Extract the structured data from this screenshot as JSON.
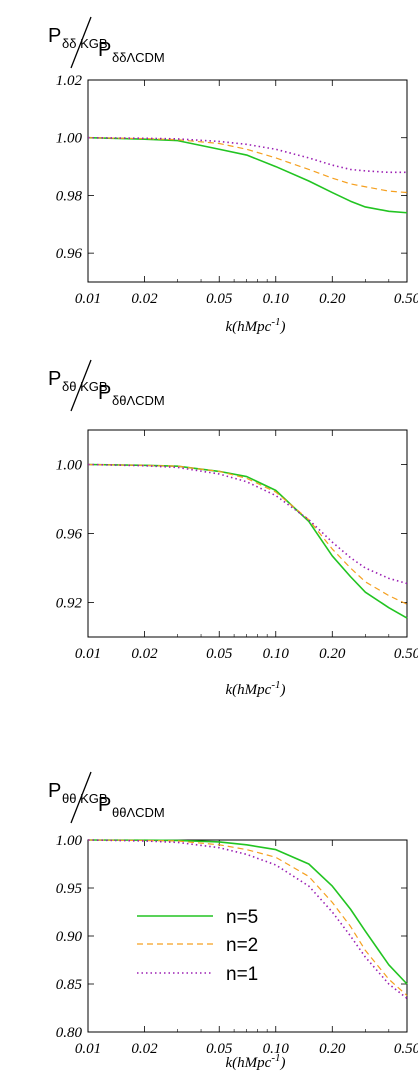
{
  "chart_data": [
    {
      "type": "line",
      "ylabel": {
        "num_main": "P",
        "num_sub": "δδ KGB",
        "den_main": "P",
        "den_sub": "δδΛCDM"
      },
      "xlabel": {
        "main": "k(hMpc",
        "sup": "-1",
        "close": ")"
      },
      "xscale": "log",
      "xlim": [
        0.01,
        0.5
      ],
      "ylim": [
        0.95,
        1.02
      ],
      "xticks": [
        0.01,
        0.02,
        0.05,
        0.1,
        0.2,
        0.5
      ],
      "xtick_labels": [
        "0.01",
        "0.02",
        "0.05",
        "0.10",
        "0.20",
        "0.50"
      ],
      "yticks": [
        0.96,
        0.98,
        1.0,
        1.02
      ],
      "ytick_labels": [
        "0.96",
        "0.98",
        "1.00",
        "1.02"
      ],
      "x": [
        0.01,
        0.02,
        0.03,
        0.05,
        0.07,
        0.1,
        0.15,
        0.2,
        0.25,
        0.3,
        0.4,
        0.5
      ],
      "series": [
        {
          "name": "n=5",
          "color": "#22c422",
          "dash": "solid",
          "width": 1.6,
          "values": [
            1.0,
            0.9995,
            0.999,
            0.996,
            0.994,
            0.99,
            0.985,
            0.981,
            0.978,
            0.976,
            0.9745,
            0.974
          ]
        },
        {
          "name": "n=2",
          "color": "#f5a020",
          "dash": "dashed",
          "width": 1.2,
          "values": [
            1.0,
            0.9997,
            0.9993,
            0.998,
            0.996,
            0.993,
            0.989,
            0.986,
            0.984,
            0.983,
            0.9815,
            0.981
          ]
        },
        {
          "name": "n=1",
          "color": "#9b1fb3",
          "dash": "dotted",
          "width": 1.6,
          "values": [
            1.0,
            0.9998,
            0.9996,
            0.9987,
            0.9977,
            0.996,
            0.993,
            0.9905,
            0.989,
            0.9885,
            0.988,
            0.988
          ]
        }
      ]
    },
    {
      "type": "line",
      "ylabel": {
        "num_main": "P",
        "num_sub": "δθ KGB",
        "den_main": "P",
        "den_sub": "δθΛCDM"
      },
      "xlabel": {
        "main": "k(hMpc",
        "sup": "-1",
        "close": ")"
      },
      "xscale": "log",
      "xlim": [
        0.01,
        0.5
      ],
      "ylim": [
        0.9,
        1.02
      ],
      "xticks": [
        0.01,
        0.02,
        0.05,
        0.1,
        0.2,
        0.5
      ],
      "xtick_labels": [
        "0.01",
        "0.02",
        "0.05",
        "0.10",
        "0.20",
        "0.50"
      ],
      "yticks": [
        0.92,
        0.96,
        1.0
      ],
      "ytick_labels": [
        "0.92",
        "0.96",
        "1.00"
      ],
      "x": [
        0.01,
        0.02,
        0.03,
        0.05,
        0.07,
        0.1,
        0.15,
        0.2,
        0.25,
        0.3,
        0.4,
        0.5
      ],
      "series": [
        {
          "name": "n=5",
          "color": "#22c422",
          "dash": "solid",
          "width": 1.6,
          "values": [
            1.0,
            0.9995,
            0.999,
            0.996,
            0.993,
            0.985,
            0.967,
            0.947,
            0.935,
            0.926,
            0.917,
            0.911
          ]
        },
        {
          "name": "n=2",
          "color": "#f5a020",
          "dash": "dashed",
          "width": 1.2,
          "values": [
            1.0,
            0.9995,
            0.999,
            0.996,
            0.992,
            0.984,
            0.968,
            0.951,
            0.94,
            0.932,
            0.924,
            0.919
          ]
        },
        {
          "name": "n=1",
          "color": "#9b1fb3",
          "dash": "dotted",
          "width": 1.6,
          "values": [
            1.0,
            0.9993,
            0.9983,
            0.9945,
            0.99,
            0.982,
            0.968,
            0.955,
            0.946,
            0.94,
            0.934,
            0.931
          ]
        }
      ]
    },
    {
      "type": "line",
      "ylabel": {
        "num_main": "P",
        "num_sub": "θθ KGB",
        "den_main": "P",
        "den_sub": "θθΛCDM"
      },
      "xlabel": {
        "main": "k(hMpc",
        "sup": "-1",
        "close": ")"
      },
      "xscale": "log",
      "xlim": [
        0.01,
        0.5
      ],
      "ylim": [
        0.8,
        1.0
      ],
      "xticks": [
        0.01,
        0.02,
        0.05,
        0.1,
        0.2,
        0.5
      ],
      "xtick_labels": [
        "0.01",
        "0.02",
        "0.05",
        "0.10",
        "0.20",
        "0.50"
      ],
      "yticks": [
        0.8,
        0.85,
        0.9,
        0.95,
        1.0
      ],
      "ytick_labels": [
        "0.80",
        "0.85",
        "0.90",
        "0.95",
        "1.00"
      ],
      "x": [
        0.01,
        0.02,
        0.03,
        0.05,
        0.07,
        0.1,
        0.15,
        0.2,
        0.25,
        0.3,
        0.4,
        0.5
      ],
      "series": [
        {
          "name": "n=5",
          "color": "#22c422",
          "dash": "solid",
          "width": 1.6,
          "values": [
            1.0,
            0.9998,
            0.9995,
            0.998,
            0.995,
            0.99,
            0.975,
            0.952,
            0.928,
            0.905,
            0.87,
            0.85
          ]
        },
        {
          "name": "n=2",
          "color": "#f5a020",
          "dash": "dashed",
          "width": 1.2,
          "values": [
            1.0,
            0.9995,
            0.999,
            0.995,
            0.99,
            0.982,
            0.962,
            0.935,
            0.91,
            0.885,
            0.855,
            0.838
          ]
        },
        {
          "name": "n=1",
          "color": "#9b1fb3",
          "dash": "dotted",
          "width": 1.6,
          "values": [
            1.0,
            0.999,
            0.9975,
            0.992,
            0.985,
            0.974,
            0.952,
            0.925,
            0.9,
            0.878,
            0.85,
            0.835
          ]
        }
      ],
      "legend": {
        "placement": "lower-left",
        "entries": [
          "n=5",
          "n=2",
          "n=1"
        ]
      }
    }
  ]
}
